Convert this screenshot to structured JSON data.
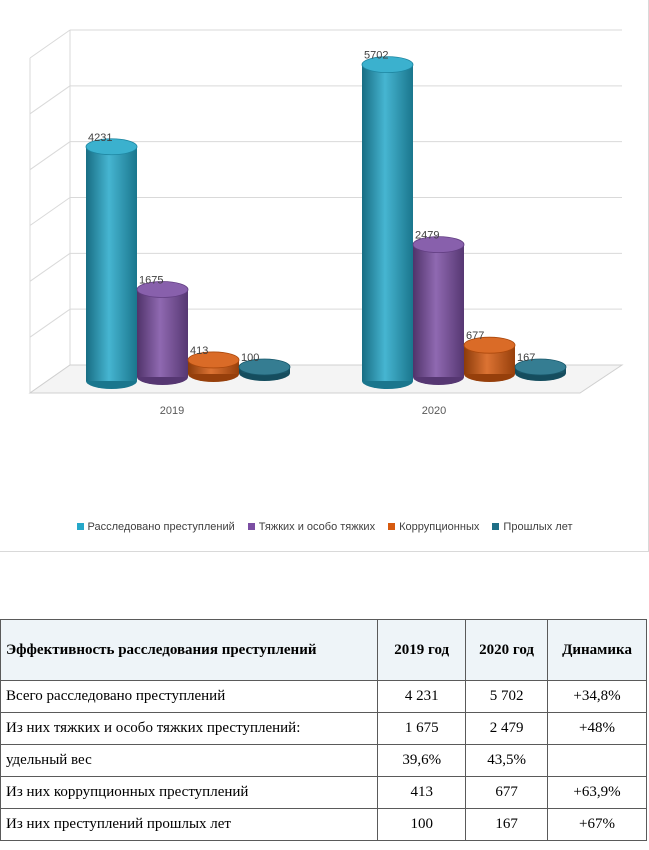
{
  "chart_data": {
    "type": "bar",
    "categories": [
      "2019",
      "2020"
    ],
    "series": [
      {
        "name": "Расследовано преступлений",
        "values": [
          4231,
          5702
        ],
        "color": "#25a8c9"
      },
      {
        "name": "Тяжких и особо тяжких",
        "values": [
          1675,
          2479
        ],
        "color": "#7b4ea3"
      },
      {
        "name": "Коррупционных",
        "values": [
          413,
          677
        ],
        "color": "#d65a0f"
      },
      {
        "name": "Прошлых лет",
        "values": [
          100,
          167
        ],
        "color": "#1e6e86"
      }
    ],
    "ylim": [
      0,
      6000
    ],
    "grid": true,
    "legend": "bottom"
  },
  "table": {
    "headers": [
      "Эффективность расследования преступлений",
      "2019 год",
      "2020 год",
      "Динамика"
    ],
    "rows": [
      [
        "Всего расследовано преступлений",
        "4 231",
        "5 702",
        "+34,8%"
      ],
      [
        "Из них тяжких и особо тяжких преступлений:",
        "1 675",
        "2 479",
        "+48%"
      ],
      [
        "удельный вес",
        "39,6%",
        "43,5%",
        ""
      ],
      [
        "Из них коррупционных преступлений",
        "413",
        "677",
        "+63,9%"
      ],
      [
        "Из них преступлений прошлых лет",
        "100",
        "167",
        "+67%"
      ]
    ]
  }
}
